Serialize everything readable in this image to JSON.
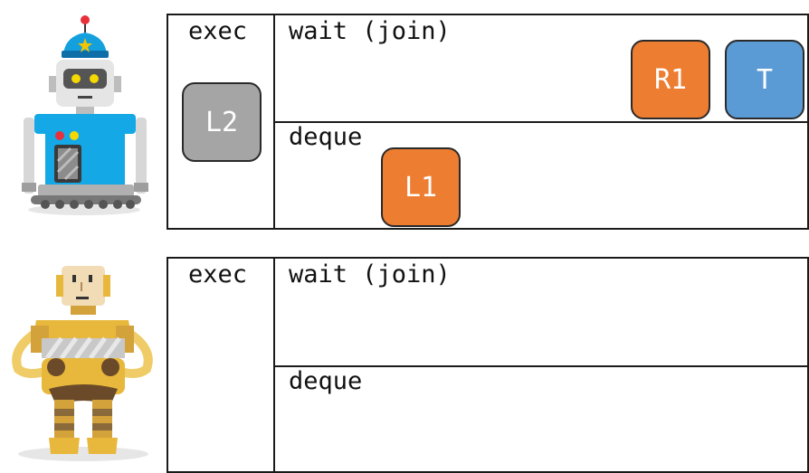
{
  "colors": {
    "orange": "#ED7D31",
    "blue": "#5B9BD5",
    "gray": "#A5A5A5"
  },
  "panels": [
    {
      "robot": "blue-robot",
      "exec_label": "exec",
      "wait_label": "wait (join)",
      "deque_label": "deque",
      "exec_task": "L2",
      "wait_tasks": [
        "R1",
        "T"
      ],
      "deque_tasks": [
        "L1"
      ]
    },
    {
      "robot": "yellow-robot",
      "exec_label": "exec",
      "wait_label": "wait (join)",
      "deque_label": "deque"
    }
  ]
}
